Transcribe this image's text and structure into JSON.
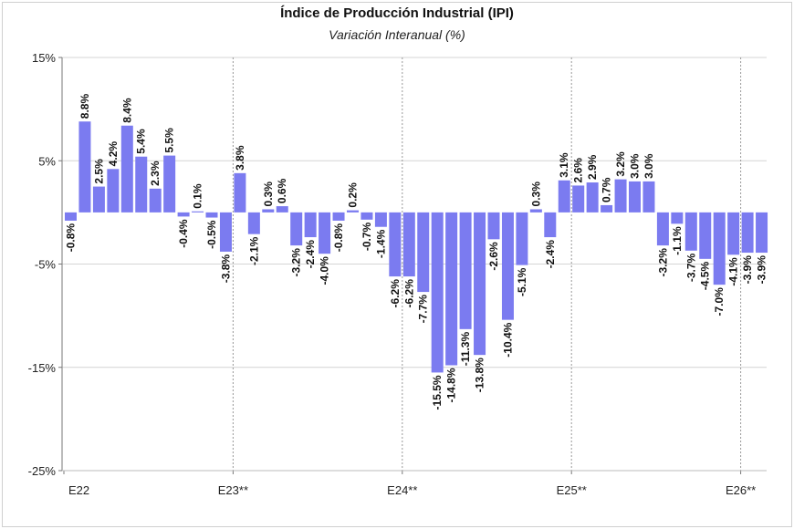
{
  "chart_data": {
    "type": "bar",
    "title": "Índice de Producción Industrial (IPI)",
    "subtitle": "Variación Interanual (%)",
    "ylim": [
      -25,
      15
    ],
    "yticks": [
      -25,
      -15,
      -5,
      5,
      15
    ],
    "ytick_labels": [
      "-25%",
      "-15%",
      "-5%",
      "5%",
      "15%"
    ],
    "grid": true,
    "bar_color": "#7b7bf0",
    "xtick_labels": [
      "E22",
      "E23**",
      "E24**",
      "E25**",
      "E26**"
    ],
    "values": [
      -0.8,
      8.8,
      2.5,
      4.2,
      8.4,
      5.4,
      2.3,
      5.5,
      -0.4,
      0.1,
      -0.5,
      -3.8,
      3.8,
      -2.1,
      0.3,
      0.6,
      -3.2,
      -2.4,
      -4.0,
      -0.8,
      0.2,
      -0.7,
      -1.4,
      -6.2,
      -6.2,
      -7.7,
      -15.5,
      -14.8,
      -11.3,
      -13.8,
      -2.6,
      -10.4,
      -5.1,
      0.3,
      -2.4,
      3.1,
      2.6,
      2.9,
      0.7,
      3.2,
      3.0,
      3.0,
      -3.2,
      -1.1,
      -3.7,
      -4.5,
      -7.0,
      -4.1,
      -3.9,
      -3.9
    ],
    "data_labels": [
      "-0.8%",
      "8.8%",
      "2.5%",
      "4.2%",
      "8.4%",
      "5.4%",
      "2.3%",
      "5.5%",
      "-0.4%",
      "0.1%",
      "-0.5%",
      "-3.8%",
      "3.8%",
      "-2.1%",
      "0.3%",
      "0.6%",
      "-3.2%",
      "-2.4%",
      "-4.0%",
      "-0.8%",
      "0.2%",
      "-0.7%",
      "-1.4%",
      "-6.2%",
      "-6.2%",
      "-7.7%",
      "-15.5%",
      "-14.8%",
      "-11.3%",
      "-13.8%",
      "-2.6%",
      "-10.4%",
      "-5.1%",
      "0.3%",
      "-2.4%",
      "3.1%",
      "2.6%",
      "2.9%",
      "0.7%",
      "3.2%",
      "3.0%",
      "3.0%",
      "-3.2%",
      "-1.1%",
      "-3.7%",
      "-4.5%",
      "-7.0%",
      "-4.1%",
      "-3.9%",
      "-3.9%"
    ]
  }
}
